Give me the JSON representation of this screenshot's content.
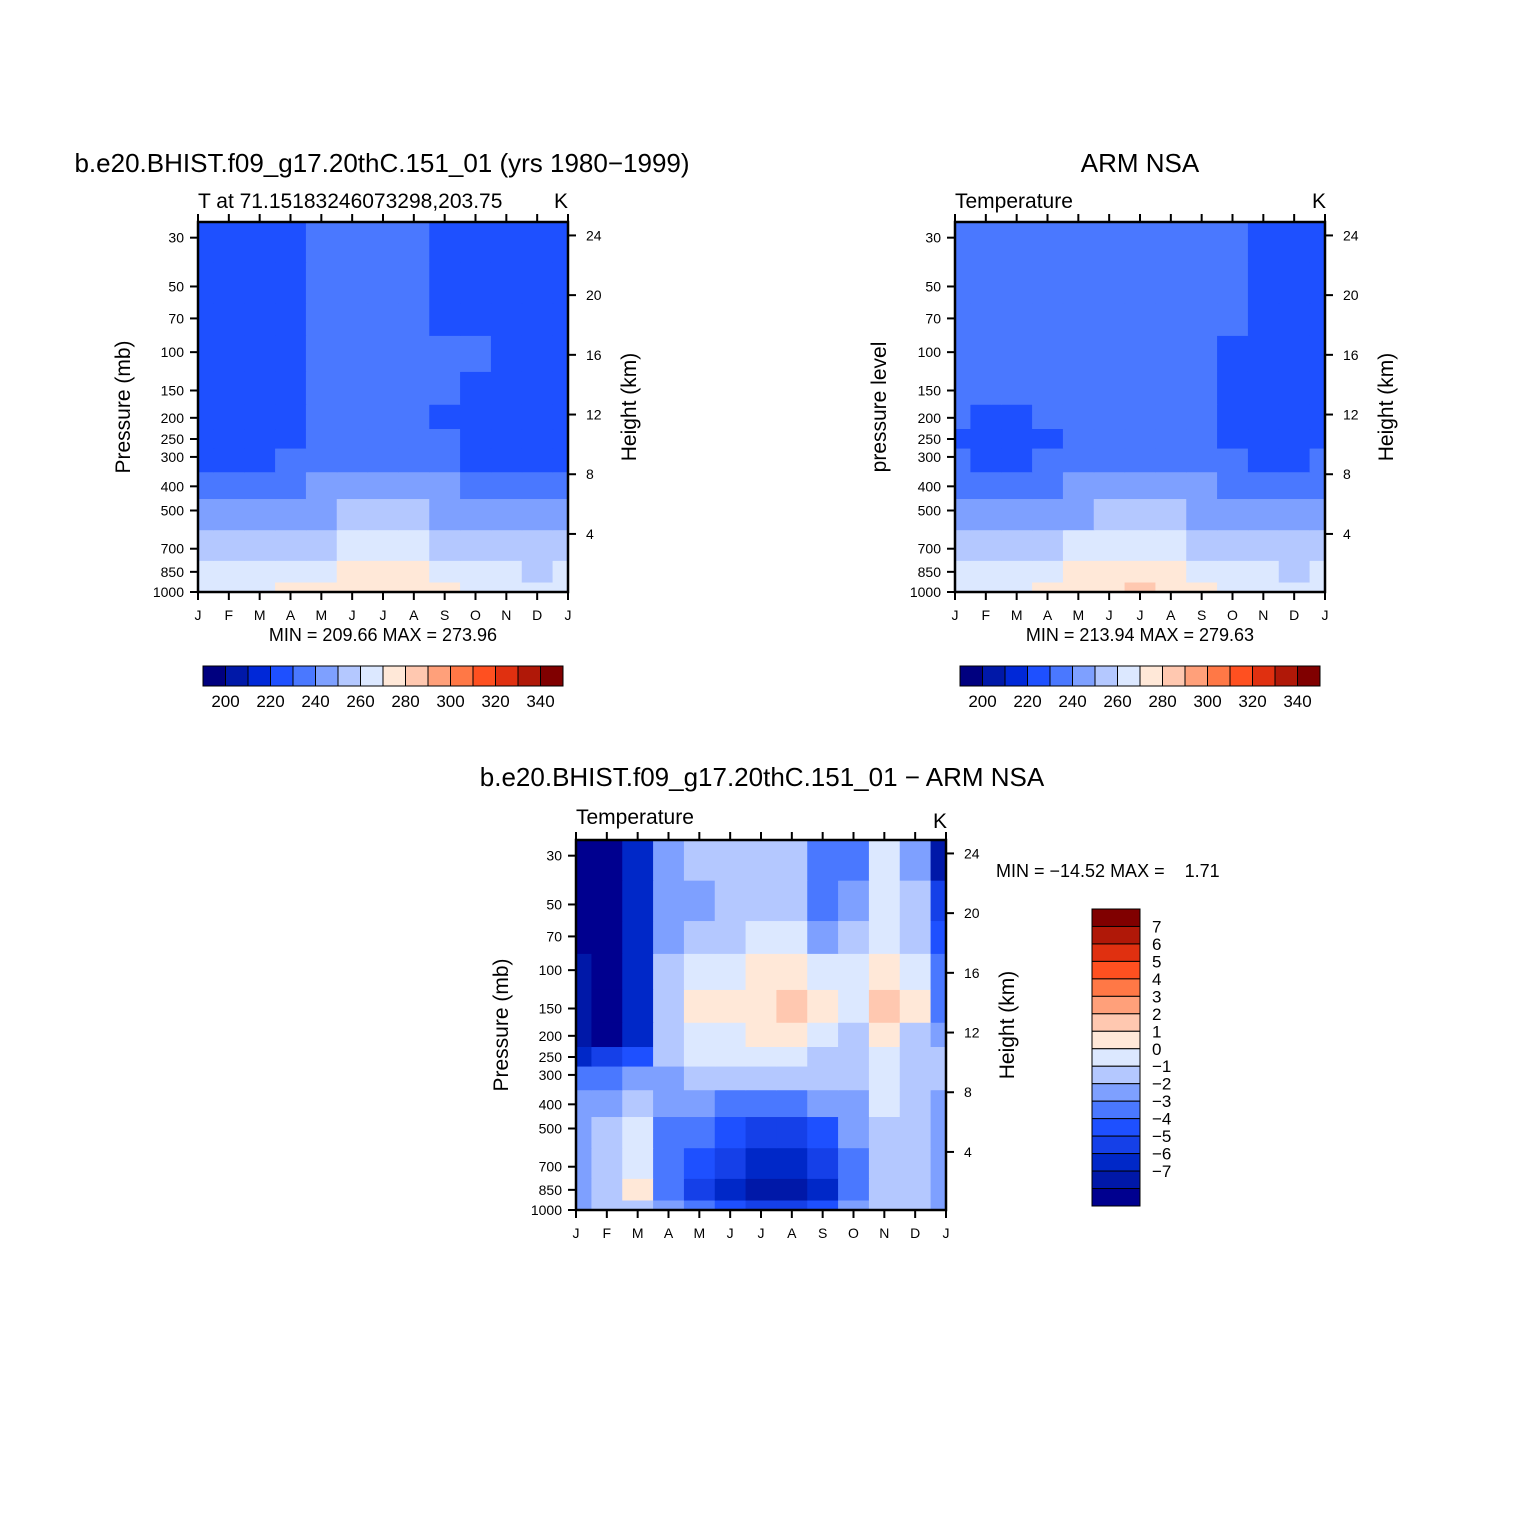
{
  "palette": {
    "abs_levels": [
      "#00007f",
      "#0018a8",
      "#0028d8",
      "#1e50ff",
      "#4a78ff",
      "#7ea0ff",
      "#b4c8ff",
      "#dce8ff",
      "#ffe8d8",
      "#ffc8b0",
      "#ffa07a",
      "#ff7846",
      "#ff5020",
      "#e03010",
      "#b01808",
      "#800000"
    ],
    "diff_levels": [
      "#00008f",
      "#0018a8",
      "#0028c8",
      "#1540e8",
      "#1e50ff",
      "#4a78ff",
      "#7ea0ff",
      "#b4c8ff",
      "#dce8ff",
      "#ffe8d8",
      "#ffc8b0",
      "#ffa07a",
      "#ff7846",
      "#ff5020",
      "#e03010",
      "#b01808",
      "#800000"
    ]
  },
  "chart_data": [
    {
      "type": "heatmap",
      "title": "b.e20.BHIST.f09_g17.20thC.151_01 (yrs 1980−1999)",
      "subtitle_left": "T at 71.15183246073298,203.75",
      "subtitle_right": "K",
      "xlabel": "",
      "ylabel": "Pressure (mb)",
      "ylabel_right": "Height (km)",
      "x": [
        "J",
        "F",
        "M",
        "A",
        "M",
        "J",
        "J",
        "A",
        "S",
        "O",
        "N",
        "D",
        "J"
      ],
      "y": [
        1000,
        850,
        700,
        500,
        400,
        300,
        250,
        200,
        150,
        100,
        70,
        50,
        30
      ],
      "y_right": [
        4,
        8,
        12,
        16,
        20,
        24
      ],
      "stats": "MIN = 209.66 MAX = 273.96",
      "colorbar": {
        "labels": [
          "200",
          "220",
          "240",
          "260",
          "280",
          "300",
          "320",
          "340"
        ]
      },
      "values": [
        [
          266,
          266,
          268,
          270,
          272,
          273,
          274,
          273,
          270,
          268,
          266,
          265,
          266
        ],
        [
          260,
          260,
          262,
          265,
          268,
          270,
          271,
          270,
          266,
          263,
          261,
          259,
          260
        ],
        [
          251,
          251,
          253,
          256,
          259,
          262,
          263,
          262,
          258,
          254,
          252,
          250,
          251
        ],
        [
          242,
          242,
          243,
          246,
          249,
          252,
          253,
          252,
          249,
          245,
          243,
          241,
          242
        ],
        [
          236,
          236,
          236,
          238,
          241,
          244,
          245,
          244,
          241,
          238,
          236,
          235,
          236
        ],
        [
          228,
          228,
          228,
          230,
          232,
          234,
          235,
          234,
          232,
          229,
          228,
          227,
          228
        ],
        [
          226,
          225,
          225,
          227,
          232,
          234,
          234,
          233,
          230,
          226,
          225,
          225,
          226
        ],
        [
          226,
          225,
          225,
          227,
          232,
          234,
          234,
          232,
          229,
          225,
          225,
          225,
          226
        ],
        [
          225,
          225,
          225,
          226,
          232,
          234,
          234,
          232,
          230,
          229,
          225,
          225,
          225
        ],
        [
          224,
          224,
          224,
          225,
          232,
          234,
          234,
          232,
          230,
          230,
          226,
          224,
          224
        ],
        [
          224,
          224,
          224,
          225,
          231,
          233,
          233,
          231,
          229,
          229,
          226,
          224,
          224
        ],
        [
          224,
          224,
          224,
          225,
          231,
          233,
          233,
          231,
          228,
          225,
          224,
          224,
          224
        ],
        [
          224,
          222,
          222,
          223,
          231,
          233,
          233,
          231,
          228,
          223,
          221,
          221,
          221
        ]
      ]
    },
    {
      "type": "heatmap",
      "title": "ARM NSA",
      "subtitle_left": "Temperature",
      "subtitle_right": "K",
      "xlabel": "",
      "ylabel": "pressure level",
      "ylabel_right": "Height (km)",
      "x": [
        "J",
        "F",
        "M",
        "A",
        "M",
        "J",
        "J",
        "A",
        "S",
        "O",
        "N",
        "D",
        "J"
      ],
      "y": [
        1000,
        850,
        700,
        500,
        400,
        300,
        250,
        200,
        150,
        100,
        70,
        50,
        30
      ],
      "y_right": [
        4,
        8,
        12,
        16,
        20,
        24
      ],
      "stats": "MIN = 213.94 MAX = 279.63",
      "colorbar": {
        "labels": [
          "200",
          "220",
          "240",
          "260",
          "280",
          "300",
          "320",
          "340"
        ]
      },
      "values": [
        [
          266,
          266,
          268,
          270,
          274,
          278,
          280,
          278,
          273,
          268,
          266,
          265,
          266
        ],
        [
          260,
          260,
          262,
          265,
          270,
          273,
          274,
          273,
          268,
          263,
          261,
          259,
          260
        ],
        [
          251,
          251,
          253,
          256,
          260,
          263,
          264,
          263,
          259,
          254,
          252,
          250,
          251
        ],
        [
          242,
          242,
          243,
          246,
          249,
          252,
          253,
          252,
          249,
          245,
          243,
          241,
          242
        ],
        [
          236,
          236,
          236,
          238,
          241,
          244,
          245,
          244,
          241,
          238,
          236,
          235,
          236
        ],
        [
          230,
          229,
          228,
          230,
          233,
          235,
          235,
          234,
          233,
          230,
          229,
          229,
          230
        ],
        [
          228,
          226,
          226,
          229,
          233,
          235,
          235,
          234,
          232,
          228,
          226,
          226,
          228
        ],
        [
          230,
          228,
          228,
          230,
          233,
          235,
          235,
          234,
          232,
          228,
          226,
          226,
          228
        ],
        [
          231,
          230,
          230,
          231,
          233,
          235,
          235,
          234,
          232,
          229,
          226,
          226,
          228
        ],
        [
          232,
          231,
          231,
          232,
          233,
          235,
          235,
          234,
          232,
          229,
          227,
          226,
          228
        ],
        [
          232,
          232,
          232,
          232,
          233,
          235,
          235,
          234,
          232,
          230,
          227,
          226,
          228
        ],
        [
          232,
          232,
          232,
          232,
          233,
          235,
          235,
          234,
          232,
          230,
          227,
          226,
          229
        ],
        [
          232,
          232,
          232,
          232,
          233,
          234,
          235,
          234,
          232,
          230,
          227,
          226,
          229
        ]
      ]
    },
    {
      "type": "heatmap",
      "title": "b.e20.BHIST.f09_g17.20thC.151_01 − ARM NSA",
      "subtitle_left": "Temperature",
      "subtitle_right": "K",
      "xlabel": "",
      "ylabel": "Pressure (mb)",
      "ylabel_right": "Height (km)",
      "x": [
        "J",
        "F",
        "M",
        "A",
        "M",
        "J",
        "J",
        "A",
        "S",
        "O",
        "N",
        "D",
        "J"
      ],
      "y": [
        1000,
        850,
        700,
        500,
        400,
        300,
        250,
        200,
        150,
        100,
        70,
        50,
        30
      ],
      "y_right": [
        4,
        8,
        12,
        16,
        20,
        24
      ],
      "stats": "MIN = −14.52 MAX =    1.71",
      "colorbar": {
        "labels": [
          "7",
          "6",
          "5",
          "4",
          "3",
          "2",
          "1",
          "0",
          "−1",
          "−2",
          "−3",
          "−4",
          "−5",
          "−6",
          "−7"
        ]
      },
      "values": [
        [
          -2.5,
          -1.5,
          -1.0,
          -2.0,
          -3.0,
          -4.0,
          -5.0,
          -5.5,
          -4.0,
          -2.0,
          -1.0,
          -1.5,
          -2.5
        ],
        [
          -2.0,
          -1.5,
          0.5,
          -3.5,
          -5.0,
          -6.5,
          -7.0,
          -7.5,
          -6.0,
          -3.5,
          -1.0,
          -1.5,
          -2.0
        ],
        [
          -2.0,
          -1.5,
          0.2,
          -3.5,
          -4.5,
          -5.5,
          -6.5,
          -6.0,
          -5.0,
          -3.0,
          -1.0,
          -1.5,
          -2.0
        ],
        [
          -2.0,
          -1.5,
          -0.5,
          -3.0,
          -3.5,
          -4.5,
          -5.0,
          -5.0,
          -4.0,
          -2.5,
          -1.0,
          -1.5,
          -2.0
        ],
        [
          -2.5,
          -2.0,
          -1.0,
          -2.5,
          -2.5,
          -3.0,
          -3.0,
          -3.0,
          -2.5,
          -2.0,
          -0.5,
          -1.5,
          -2.0
        ],
        [
          -3.5,
          -3.0,
          -2.5,
          -2.0,
          -1.5,
          -1.0,
          -1.0,
          -1.0,
          -1.5,
          -1.5,
          -0.5,
          -1.0,
          -1.5
        ],
        [
          -6.0,
          -5.5,
          -4.5,
          -1.5,
          -0.5,
          -0.5,
          -0.5,
          0.3,
          -1.0,
          -1.5,
          -0.5,
          -1.0,
          -1.5
        ],
        [
          -7.5,
          -8.0,
          -6.0,
          -1.5,
          -0.5,
          0.3,
          0.5,
          0.5,
          -0.5,
          -1.5,
          0.5,
          -1.5,
          -2.5
        ],
        [
          -7.5,
          -8.0,
          -6.0,
          -1.5,
          0.5,
          0.5,
          0.5,
          1.5,
          0.5,
          -0.5,
          1.5,
          0.5,
          -3.0
        ],
        [
          -7.5,
          -8.0,
          -6.5,
          -1.5,
          -0.5,
          0.2,
          0.5,
          0.5,
          0.2,
          -0.5,
          1.2,
          0.2,
          -3.0
        ],
        [
          -8.0,
          -8.0,
          -6.5,
          -2.0,
          -1.5,
          -1.0,
          -0.5,
          -0.5,
          -2.0,
          -1.5,
          0.3,
          -1.0,
          -4.0
        ],
        [
          -8.0,
          -8.0,
          -6.5,
          -2.5,
          -2.0,
          -1.5,
          -1.0,
          -1.5,
          -3.0,
          -2.0,
          0.2,
          -1.5,
          -5.0
        ],
        [
          -8.0,
          -8.0,
          -6.0,
          -2.0,
          -1.5,
          -1.0,
          -1.0,
          -1.5,
          -3.5,
          -3.0,
          0.3,
          -2.5,
          -7.5
        ]
      ]
    }
  ]
}
